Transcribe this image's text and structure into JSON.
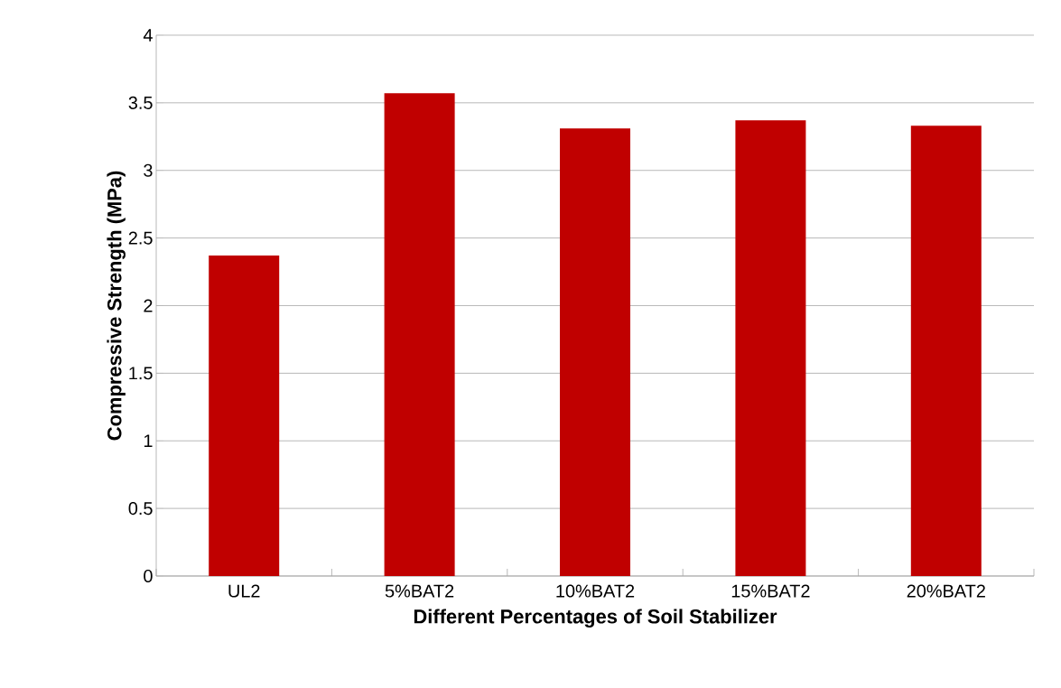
{
  "chart_data": {
    "type": "bar",
    "xlabel": "Different  Percentages of  Soil Stabilizer",
    "ylabel": "Compressive Strength (MPa)",
    "categories": [
      "UL2",
      "5%BAT2",
      "10%BAT2",
      "15%BAT2",
      "20%BAT2"
    ],
    "values": [
      2.37,
      3.57,
      3.31,
      3.37,
      3.33
    ],
    "color": "#c00000",
    "ylim": [
      0,
      4
    ],
    "yticks": [
      0,
      0.5,
      1,
      1.5,
      2,
      2.5,
      3,
      3.5,
      4
    ],
    "grid": "y"
  }
}
